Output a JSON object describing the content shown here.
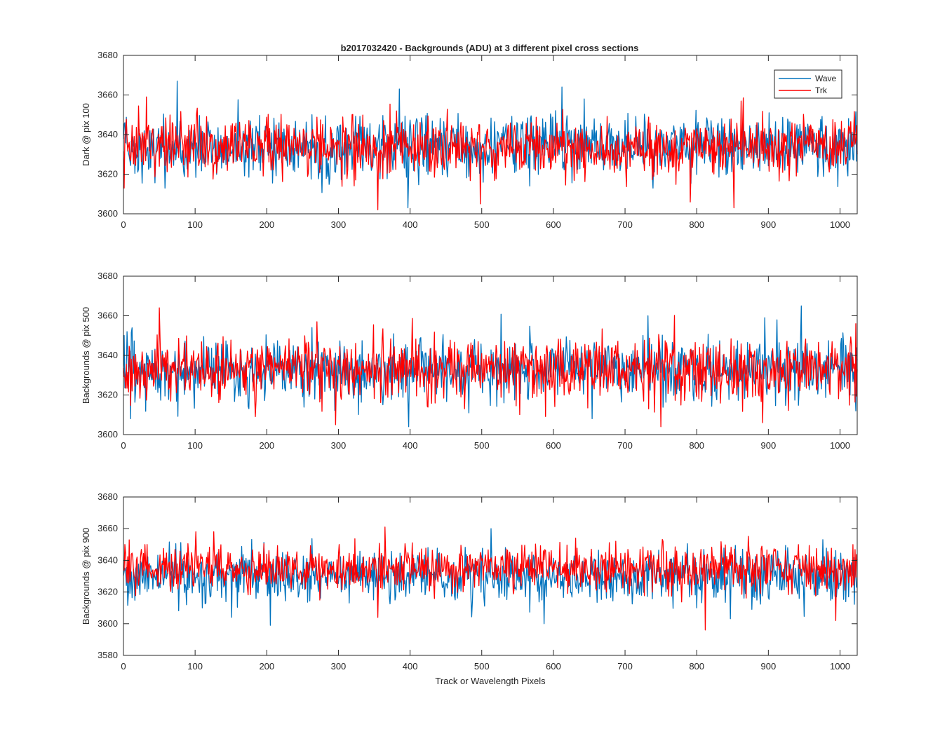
{
  "figure": {
    "title": "b2017032420 - Backgrounds (ADU) at 3 different pixel cross sections",
    "xlabel": "Track or Wavelength Pixels"
  },
  "legend": {
    "position": "top-right of first subplot",
    "entries": [
      {
        "label": "Wave",
        "color": "#0072BD"
      },
      {
        "label": "Trk",
        "color": "#FF0000"
      }
    ]
  },
  "chart_data": [
    {
      "type": "line",
      "ylabel": "Dark @ pix 100",
      "xlim": [
        0,
        1024
      ],
      "ylim": [
        3600,
        3680
      ],
      "xticks": [
        0,
        100,
        200,
        300,
        400,
        500,
        600,
        700,
        800,
        900,
        1000
      ],
      "yticks": [
        3600,
        3620,
        3640,
        3660,
        3680
      ],
      "grid": false,
      "series": [
        {
          "name": "Wave",
          "color": "#0072BD",
          "mean": 3634,
          "noise_sd": 7.5,
          "notable_points": [
            [
              75,
              3667
            ],
            [
              385,
              3663
            ],
            [
              612,
              3664
            ],
            [
              58,
              3613
            ],
            [
              397,
              3603
            ]
          ]
        },
        {
          "name": "Trk",
          "color": "#FF0000",
          "mean": 3634,
          "noise_sd": 7.5,
          "notable_points": [
            [
              32,
              3659
            ],
            [
              1,
              3613
            ],
            [
              355,
              3602
            ],
            [
              498,
              3605
            ],
            [
              791,
              3606
            ],
            [
              852,
              3603
            ]
          ]
        }
      ]
    },
    {
      "type": "line",
      "ylabel": "Backgrounds @ pix 500",
      "xlim": [
        0,
        1024
      ],
      "ylim": [
        3600,
        3680
      ],
      "xticks": [
        0,
        100,
        200,
        300,
        400,
        500,
        600,
        700,
        800,
        900,
        1000
      ],
      "yticks": [
        3600,
        3620,
        3640,
        3660,
        3680
      ],
      "grid": false,
      "series": [
        {
          "name": "Wave",
          "color": "#0072BD",
          "mean": 3633,
          "noise_sd": 8,
          "notable_points": [
            [
              946,
              3665
            ],
            [
              895,
              3659
            ],
            [
              732,
              3660
            ],
            [
              398,
              3604
            ],
            [
              1022,
              3612
            ]
          ]
        },
        {
          "name": "Trk",
          "color": "#FF0000",
          "mean": 3633,
          "noise_sd": 8,
          "notable_points": [
            [
              50,
              3664
            ],
            [
              270,
              3657
            ],
            [
              296,
              3605
            ],
            [
              750,
              3604
            ],
            [
              892,
              3606
            ],
            [
              1022,
              3656
            ]
          ]
        }
      ]
    },
    {
      "type": "line",
      "ylabel": "Backgrounds @ pix 900",
      "xlim": [
        0,
        1024
      ],
      "ylim": [
        3580,
        3680
      ],
      "xticks": [
        0,
        100,
        200,
        300,
        400,
        500,
        600,
        700,
        800,
        900,
        1000
      ],
      "yticks": [
        3580,
        3600,
        3620,
        3640,
        3660,
        3680
      ],
      "grid": false,
      "series": [
        {
          "name": "Wave",
          "color": "#0072BD",
          "mean": 3630,
          "noise_sd": 8,
          "notable_points": [
            [
              513,
              3660
            ],
            [
              205,
              3599
            ],
            [
              587,
              3600
            ],
            [
              800,
              3610
            ]
          ]
        },
        {
          "name": "Trk",
          "color": "#FF0000",
          "mean": 3635,
          "noise_sd": 7.5,
          "notable_points": [
            [
              365,
              3661
            ],
            [
              101,
              3658
            ],
            [
              126,
              3658
            ],
            [
              812,
              3596
            ],
            [
              994,
              3602
            ]
          ]
        }
      ]
    }
  ]
}
